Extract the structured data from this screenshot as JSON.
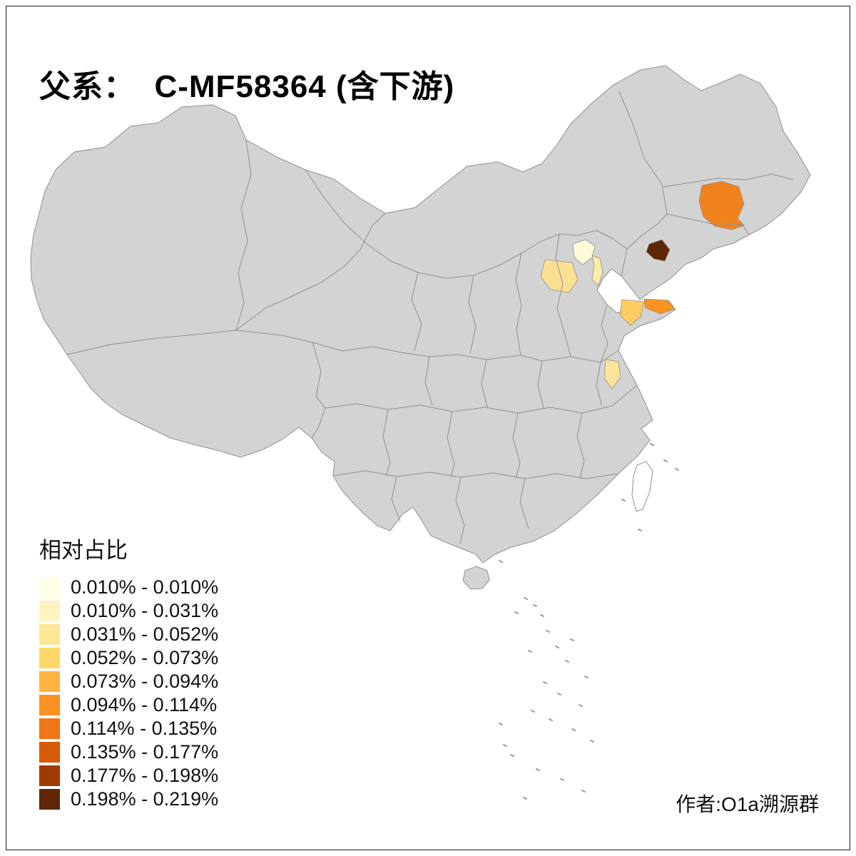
{
  "title": "父系：  C-MF58364 (含下游)",
  "author": "作者:O1a溯源群",
  "legend": {
    "title": "相对占比",
    "items": [
      {
        "label": "0.010% - 0.010%",
        "color": "#FFFFE5"
      },
      {
        "label": "0.010% - 0.031%",
        "color": "#FFF4C0"
      },
      {
        "label": "0.031% - 0.052%",
        "color": "#FEE695"
      },
      {
        "label": "0.052% - 0.073%",
        "color": "#FED76A"
      },
      {
        "label": "0.073% - 0.094%",
        "color": "#FEB440"
      },
      {
        "label": "0.094% - 0.114%",
        "color": "#FB9023"
      },
      {
        "label": "0.114% - 0.135%",
        "color": "#EF7617"
      },
      {
        "label": "0.135% - 0.177%",
        "color": "#D65A08"
      },
      {
        "label": "0.177% - 0.198%",
        "color": "#9E3B04"
      },
      {
        "label": "0.198% - 0.219%",
        "color": "#5F2606"
      }
    ]
  },
  "map": {
    "land_fill": "#D3D3D3",
    "border_color": "#8F8F8F",
    "sea_background": "#FFFFFF",
    "highlighted_regions": [
      {
        "id": "northeast-orange-region",
        "color": "#F0821E"
      },
      {
        "id": "liaoning-coast-dark-region",
        "color": "#5F2606"
      },
      {
        "id": "beijing-pale-region",
        "color": "#FFFBD9"
      },
      {
        "id": "hebei-light-region",
        "color": "#FAE093"
      },
      {
        "id": "tianjin-light-region",
        "color": "#FCEDA9"
      },
      {
        "id": "shandong-tip-orange-region",
        "color": "#F79320"
      },
      {
        "id": "shandong-mid-tan-region",
        "color": "#FCCB61"
      },
      {
        "id": "jiangsu-light-region",
        "color": "#FAE49C"
      }
    ]
  }
}
